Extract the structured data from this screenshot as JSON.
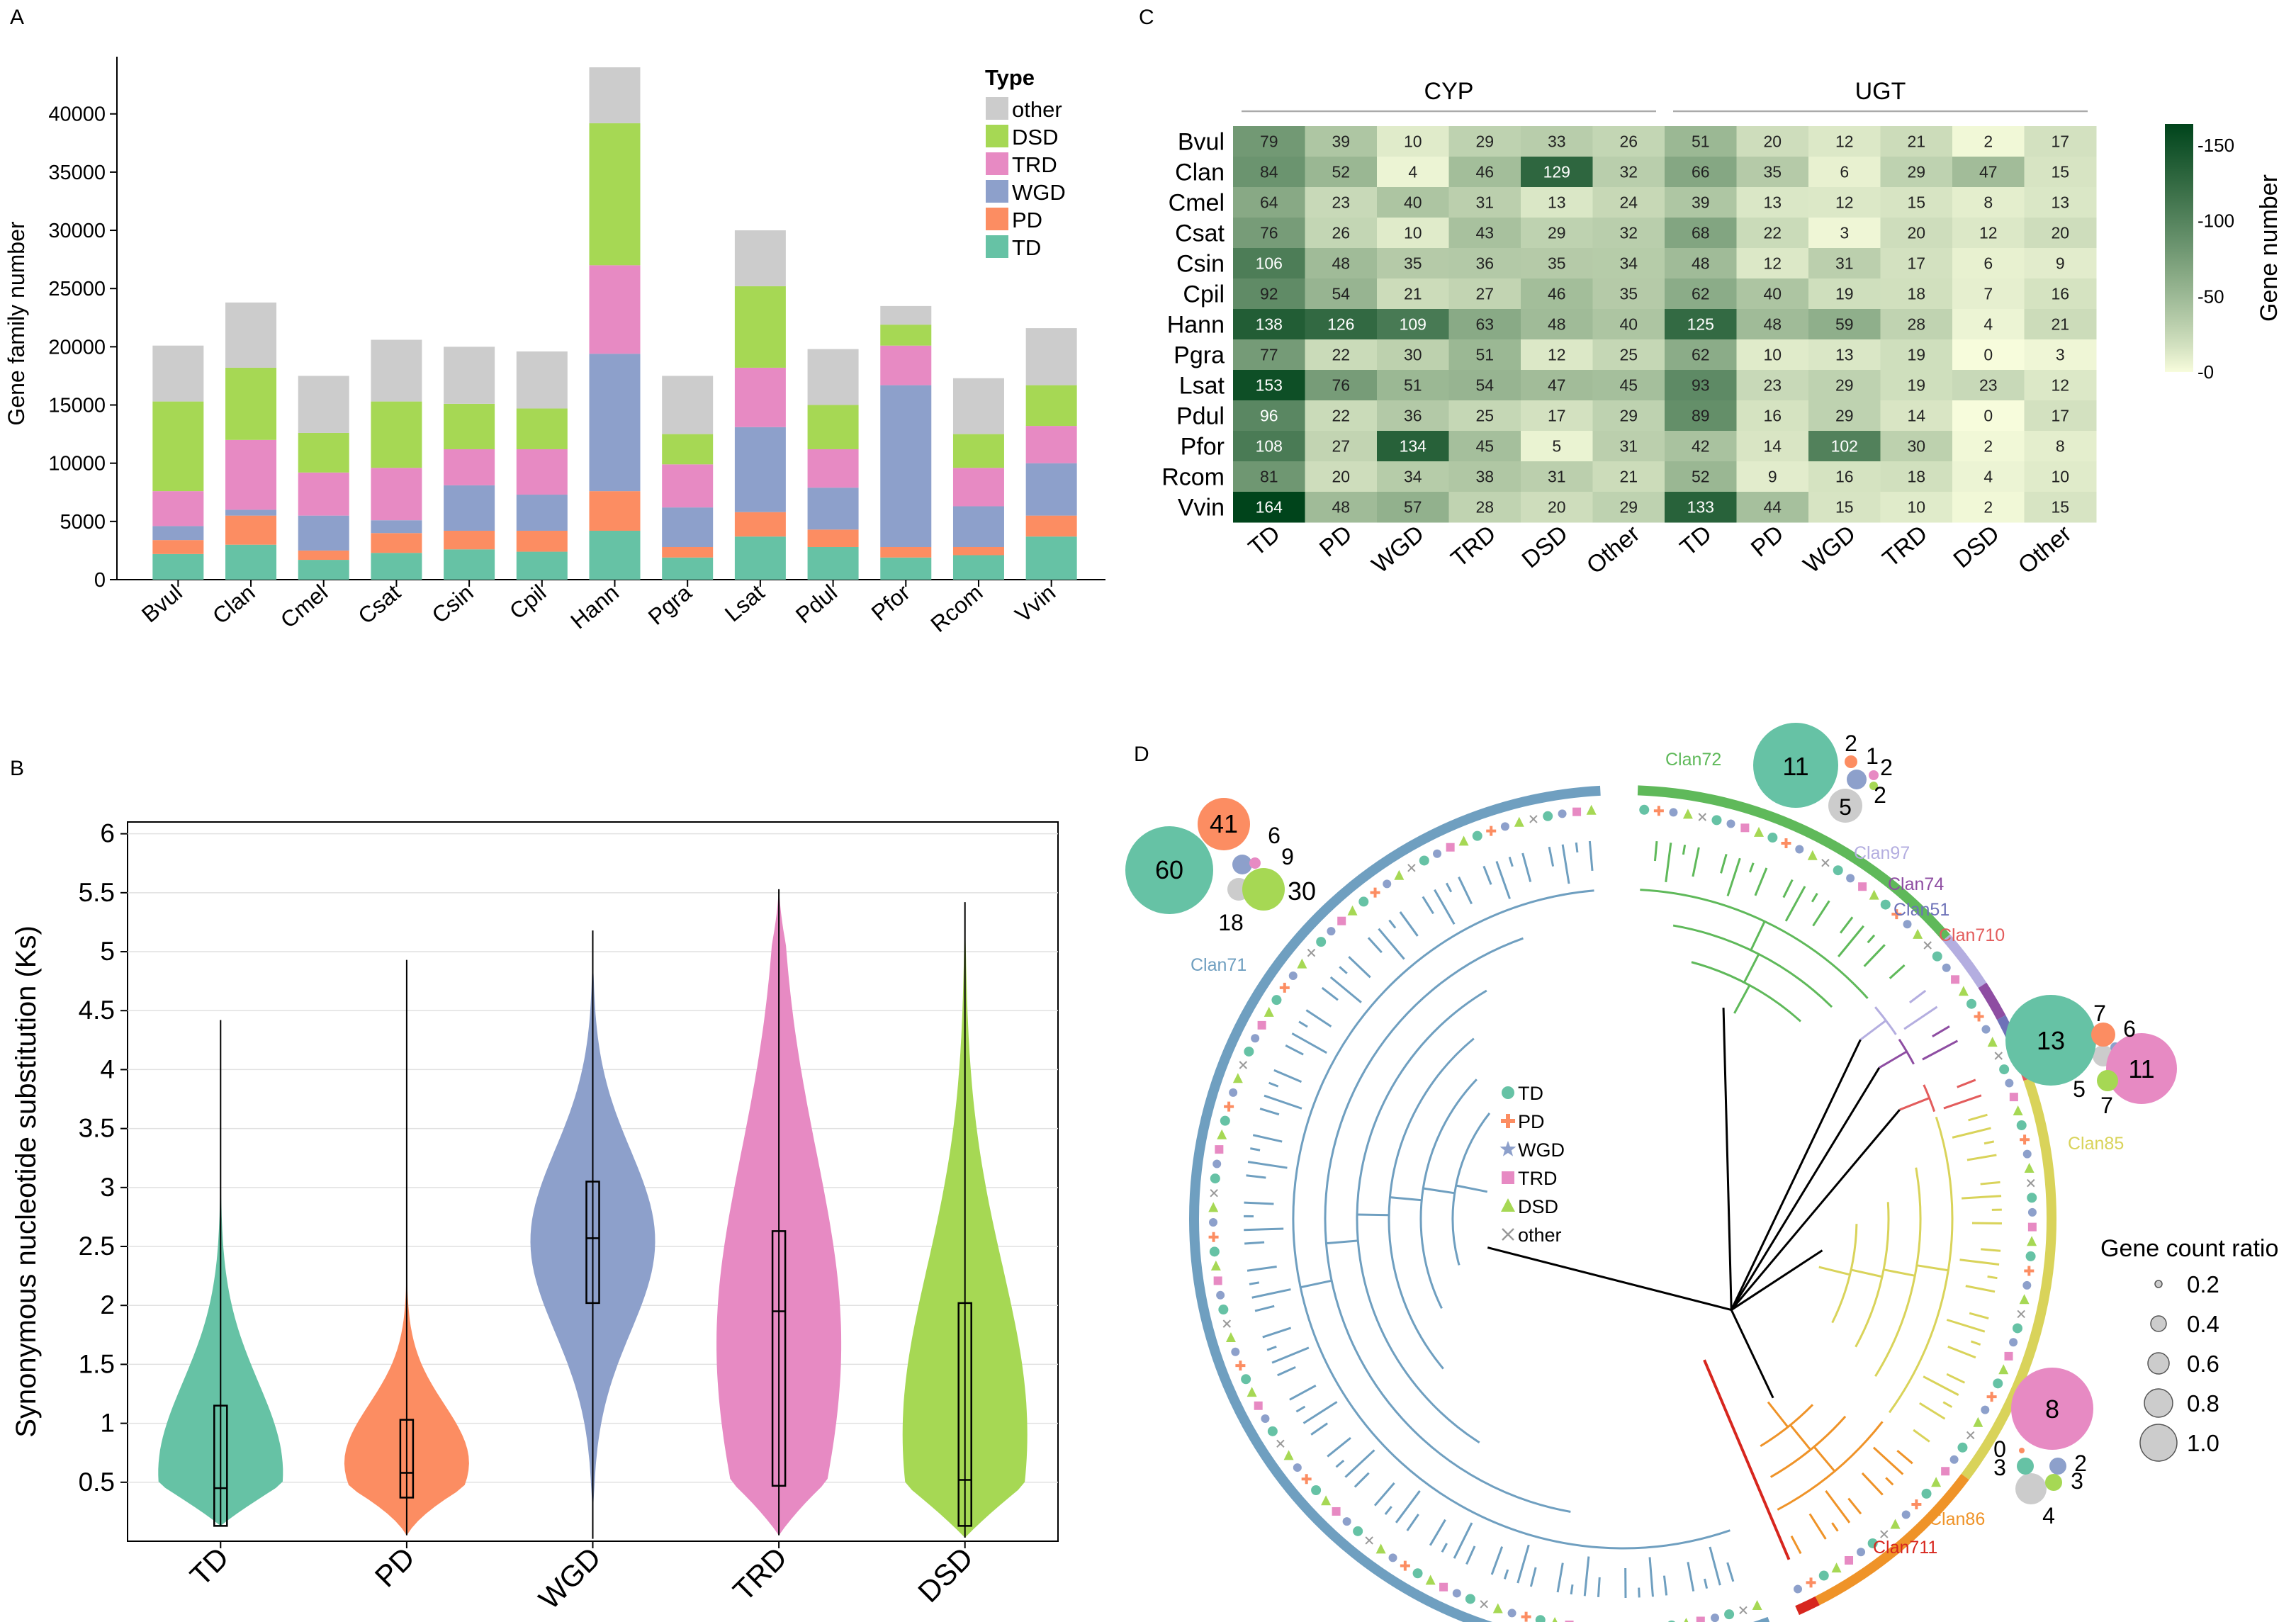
{
  "panels": {
    "A": "A",
    "B": "B",
    "C": "C",
    "D": "D"
  },
  "chart_data": [
    {
      "panel": "A",
      "type": "bar",
      "stacked": true,
      "ylabel": "Gene family number",
      "ylim": [
        0,
        44000
      ],
      "yticks": [
        0,
        5000,
        10000,
        15000,
        20000,
        25000,
        30000,
        35000,
        40000
      ],
      "legend_title": "Type",
      "legend_position": "top-right",
      "categories": [
        "Bvul",
        "Clan",
        "Cmel",
        "Csat",
        "Csin",
        "Cpil",
        "Hann",
        "Pgra",
        "Lsat",
        "Pdul",
        "Pfor",
        "Rcom",
        "Vvin"
      ],
      "series": [
        {
          "name": "TD",
          "color": "#66c2a5",
          "values": [
            2200,
            3000,
            1700,
            2300,
            2600,
            2400,
            4200,
            1900,
            3700,
            2800,
            1900,
            2100,
            3700
          ]
        },
        {
          "name": "PD",
          "color": "#fc8d62",
          "values": [
            1200,
            2500,
            800,
            1700,
            1600,
            1800,
            3400,
            900,
            2100,
            1500,
            900,
            700,
            1800
          ]
        },
        {
          "name": "WGD",
          "color": "#8da0cb",
          "values": [
            1200,
            500,
            3000,
            1100,
            3900,
            3100,
            11800,
            3400,
            7300,
            3600,
            13900,
            3500,
            4500
          ]
        },
        {
          "name": "TRD",
          "color": "#e78ac3",
          "values": [
            3000,
            6000,
            3700,
            4500,
            3100,
            3900,
            7600,
            3700,
            5100,
            3300,
            3400,
            3300,
            3200
          ]
        },
        {
          "name": "DSD",
          "color": "#a6d854",
          "values": [
            7700,
            6200,
            3400,
            5700,
            3900,
            3500,
            12200,
            2600,
            7000,
            3800,
            1800,
            2900,
            3500
          ]
        },
        {
          "name": "other",
          "color": "#cccccc",
          "values": [
            4800,
            5600,
            4900,
            5300,
            4900,
            4900,
            4800,
            5000,
            4800,
            4800,
            1600,
            4800,
            4900
          ]
        }
      ]
    },
    {
      "panel": "B",
      "type": "violin",
      "ylabel": "Synonymous nucleotide substitution (Ks)",
      "ylim": [
        0,
        6.1
      ],
      "yticks": [
        0.5,
        1,
        1.5,
        2,
        2.5,
        3,
        3.5,
        4,
        4.5,
        5,
        5.5,
        6
      ],
      "categories": [
        "TD",
        "PD",
        "WGD",
        "TRD",
        "DSD"
      ],
      "colors": [
        "#66c2a5",
        "#fc8d62",
        "#8da0cb",
        "#e78ac3",
        "#a6d854"
      ],
      "box": [
        {
          "min": 0.13,
          "q1": 0.13,
          "median": 0.45,
          "q3": 1.15,
          "max": 4.42
        },
        {
          "min": 0.05,
          "q1": 0.37,
          "median": 0.58,
          "q3": 1.03,
          "max": 4.93
        },
        {
          "min": 0.02,
          "q1": 2.02,
          "median": 2.57,
          "q3": 3.05,
          "max": 5.18
        },
        {
          "min": 0.05,
          "q1": 0.47,
          "median": 1.95,
          "q3": 2.63,
          "max": 5.53
        },
        {
          "min": 0.03,
          "q1": 0.13,
          "median": 0.52,
          "q3": 2.02,
          "max": 5.42
        }
      ]
    },
    {
      "panel": "C",
      "type": "heatmap",
      "groups": [
        "CYP",
        "UGT"
      ],
      "columns": [
        "TD",
        "PD",
        "WGD",
        "TRD",
        "DSD",
        "Other",
        "TD",
        "PD",
        "WGD",
        "TRD",
        "DSD",
        "Other"
      ],
      "rows": [
        "Bvul",
        "Clan",
        "Cmel",
        "Csat",
        "Csin",
        "Cpil",
        "Hann",
        "Pgra",
        "Lsat",
        "Pdul",
        "Pfor",
        "Rcom",
        "Vvin"
      ],
      "values": [
        [
          79,
          39,
          10,
          29,
          33,
          26,
          51,
          20,
          12,
          21,
          2,
          17
        ],
        [
          84,
          52,
          4,
          46,
          129,
          32,
          66,
          35,
          6,
          29,
          47,
          15
        ],
        [
          64,
          23,
          40,
          31,
          13,
          24,
          39,
          13,
          12,
          15,
          8,
          13
        ],
        [
          76,
          26,
          10,
          43,
          29,
          32,
          68,
          22,
          3,
          20,
          12,
          20
        ],
        [
          106,
          48,
          35,
          36,
          35,
          34,
          48,
          12,
          31,
          17,
          6,
          9
        ],
        [
          92,
          54,
          21,
          27,
          46,
          35,
          62,
          40,
          19,
          18,
          7,
          16
        ],
        [
          138,
          126,
          109,
          63,
          48,
          40,
          125,
          48,
          59,
          28,
          4,
          21
        ],
        [
          77,
          22,
          30,
          51,
          12,
          25,
          62,
          10,
          13,
          19,
          0,
          3
        ],
        [
          153,
          76,
          51,
          54,
          47,
          45,
          93,
          23,
          29,
          19,
          23,
          12
        ],
        [
          96,
          22,
          36,
          25,
          17,
          29,
          89,
          16,
          29,
          14,
          0,
          17
        ],
        [
          108,
          27,
          134,
          45,
          5,
          31,
          42,
          14,
          102,
          30,
          2,
          8
        ],
        [
          81,
          20,
          34,
          38,
          31,
          21,
          52,
          9,
          16,
          18,
          4,
          10
        ],
        [
          164,
          48,
          57,
          28,
          20,
          29,
          133,
          44,
          15,
          10,
          2,
          15
        ]
      ],
      "colorbar_label": "Gene number",
      "colorbar_ticks": [
        0,
        50,
        100,
        150
      ],
      "colorbar_tick_labels": [
        "-0",
        "-50",
        "-100",
        "-150"
      ],
      "color_range": [
        0,
        164
      ],
      "color_low": "#f7fcdc",
      "color_high": "#00441b"
    },
    {
      "panel": "D",
      "type": "tree",
      "clans": [
        {
          "name": "Clan71",
          "color": "#6f9fc0"
        },
        {
          "name": "Clan72",
          "color": "#5fb95a"
        },
        {
          "name": "Clan97",
          "color": "#b4aee0"
        },
        {
          "name": "Clan74",
          "color": "#8e4da2"
        },
        {
          "name": "Clan51",
          "color": "#6e72b8"
        },
        {
          "name": "Clan710",
          "color": "#e35c5c"
        },
        {
          "name": "Clan85",
          "color": "#d9d35a"
        },
        {
          "name": "Clan86",
          "color": "#ef9328"
        },
        {
          "name": "Clan711",
          "color": "#d7261e"
        }
      ],
      "legend": [
        {
          "label": "TD",
          "symbol": "circle",
          "color": "#66c2a5"
        },
        {
          "label": "PD",
          "symbol": "cross",
          "color": "#fc8d62"
        },
        {
          "label": "WGD",
          "symbol": "star",
          "color": "#8da0cb"
        },
        {
          "label": "TRD",
          "symbol": "square",
          "color": "#e78ac3"
        },
        {
          "label": "DSD",
          "symbol": "triangle",
          "color": "#a6d854"
        },
        {
          "label": "other",
          "symbol": "x",
          "color": "#999999"
        }
      ],
      "bubble_groups": [
        {
          "clan": "Clan71",
          "counts": {
            "TD": 60,
            "PD": 41,
            "WGD": 6,
            "TRD": 9,
            "DSD": 30,
            "other": 18
          }
        },
        {
          "clan": "Clan72",
          "counts": {
            "TD": 11,
            "PD": 2,
            "WGD": 1,
            "TRD": 2,
            "DSD": 2,
            "other": 5
          }
        },
        {
          "clan": "Clan85",
          "counts": {
            "TD": 13,
            "PD": 7,
            "WGD": 6,
            "TRD": 11,
            "DSD": 7,
            "other": 5
          }
        },
        {
          "clan": "Clan86",
          "counts": {
            "TD": 3,
            "PD": 0,
            "WGD": 2,
            "TRD": 8,
            "DSD": 3,
            "other": 4
          }
        }
      ],
      "size_legend_title": "Gene count ratio",
      "size_legend": [
        "0.2",
        "0.4",
        "0.6",
        "0.8",
        "1.0"
      ]
    }
  ]
}
